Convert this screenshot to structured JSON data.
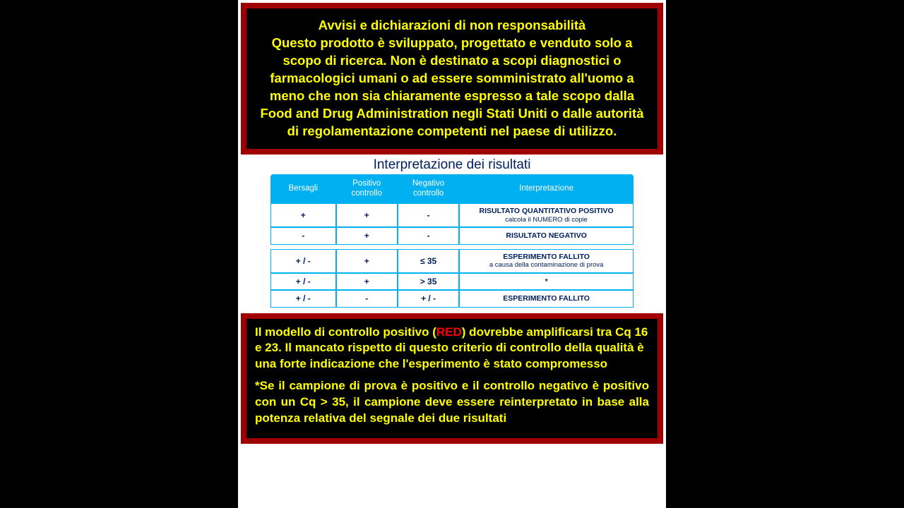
{
  "warning_top": {
    "title": "Avvisi e dichiarazioni di non responsabilità",
    "body": "Questo prodotto è sviluppato, progettato e venduto solo a scopo di ricerca. Non è destinato a scopi diagnostici o farmacologici umani o ad essere somministrato all'uomo a meno che non sia chiaramente espresso a tale scopo dalla Food and Drug Administration negli Stati Uniti o dalle autorità di regolamentazione competenti nel paese di utilizzo."
  },
  "table": {
    "title": "Interpretazione dei risultati",
    "headers": {
      "targets": "Bersagli",
      "positive_control": "Positivo controllo",
      "negative_control": "Negativo controllo",
      "interpretation": "Interpretazione"
    },
    "rows_a": [
      {
        "targets": "+",
        "pos": "+",
        "neg": "-",
        "interp_main": "RISULTATO QUANTITATIVO POSITIVO",
        "interp_sub": "calcola il NUMERO di copie"
      },
      {
        "targets": "-",
        "pos": "+",
        "neg": "-",
        "interp_main": "RISULTATO NEGATIVO",
        "interp_sub": ""
      }
    ],
    "rows_b": [
      {
        "targets": "+ / -",
        "pos": "+",
        "neg": "≤ 35",
        "interp_main": "ESPERIMENTO FALLITO",
        "interp_sub": "a causa della contaminazione di prova"
      },
      {
        "targets": "+ / -",
        "pos": "+",
        "neg": "> 35",
        "interp_main": "*",
        "interp_sub": ""
      },
      {
        "targets": "+ / -",
        "pos": "-",
        "neg": "+ / -",
        "interp_main": "ESPERIMENTO FALLITO",
        "interp_sub": ""
      }
    ]
  },
  "warning_bottom": {
    "para1_pre": " Il modello di controllo positivo (",
    "para1_red": "RED",
    "para1_post": ") dovrebbe amplificarsi tra Cq 16 e 23. Il mancato rispetto di questo criterio di controllo della qualità è una forte indicazione che l'esperimento è stato compromesso",
    "para2": "*Se il campione di prova è positivo e il controllo negativo è positivo con un Cq > 35, il campione deve essere reinterpretato in base alla potenza relativa del segnale dei due risultati"
  },
  "styling": {
    "page_background": "#ffffff",
    "body_background": "#000000",
    "warning_border_color": "#a00000",
    "warning_text_color": "#ffff00",
    "warning_bg_color": "#000000",
    "table_header_bg": "#00b0f0",
    "table_header_text": "#ffffff",
    "table_cell_text": "#002060",
    "table_border_color": "#00b0f0",
    "table_title_color": "#002060",
    "red_inline_color": "#ff0000"
  }
}
